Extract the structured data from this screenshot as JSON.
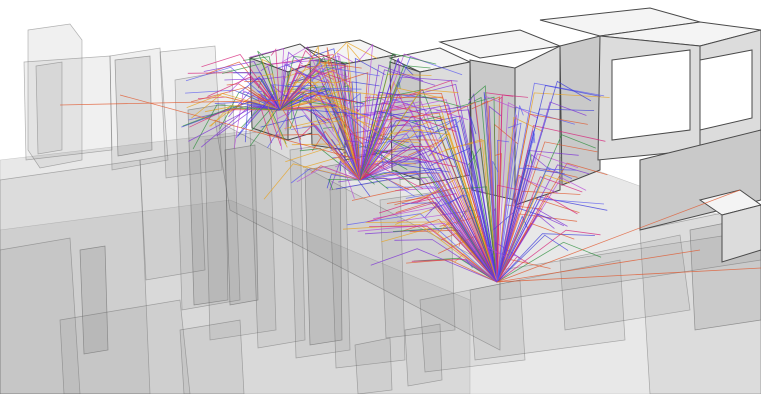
{
  "scene": {
    "palette": {
      "background": "#ffffff",
      "building_fill": "#f4f4f4",
      "translucent_fill": "#8a8a8a",
      "ray_colors": [
        "#7b2fd6",
        "#3b3bdc",
        "#d6237a",
        "#e0562b",
        "#e8a21c",
        "#2e8f3e",
        "#b84bd9",
        "#5a5af0"
      ]
    },
    "ray_bundles": [
      {
        "origin": "street-level-receiver"
      },
      {
        "origin": "mid-block-fan"
      },
      {
        "origin": "far-street-cluster"
      }
    ]
  }
}
